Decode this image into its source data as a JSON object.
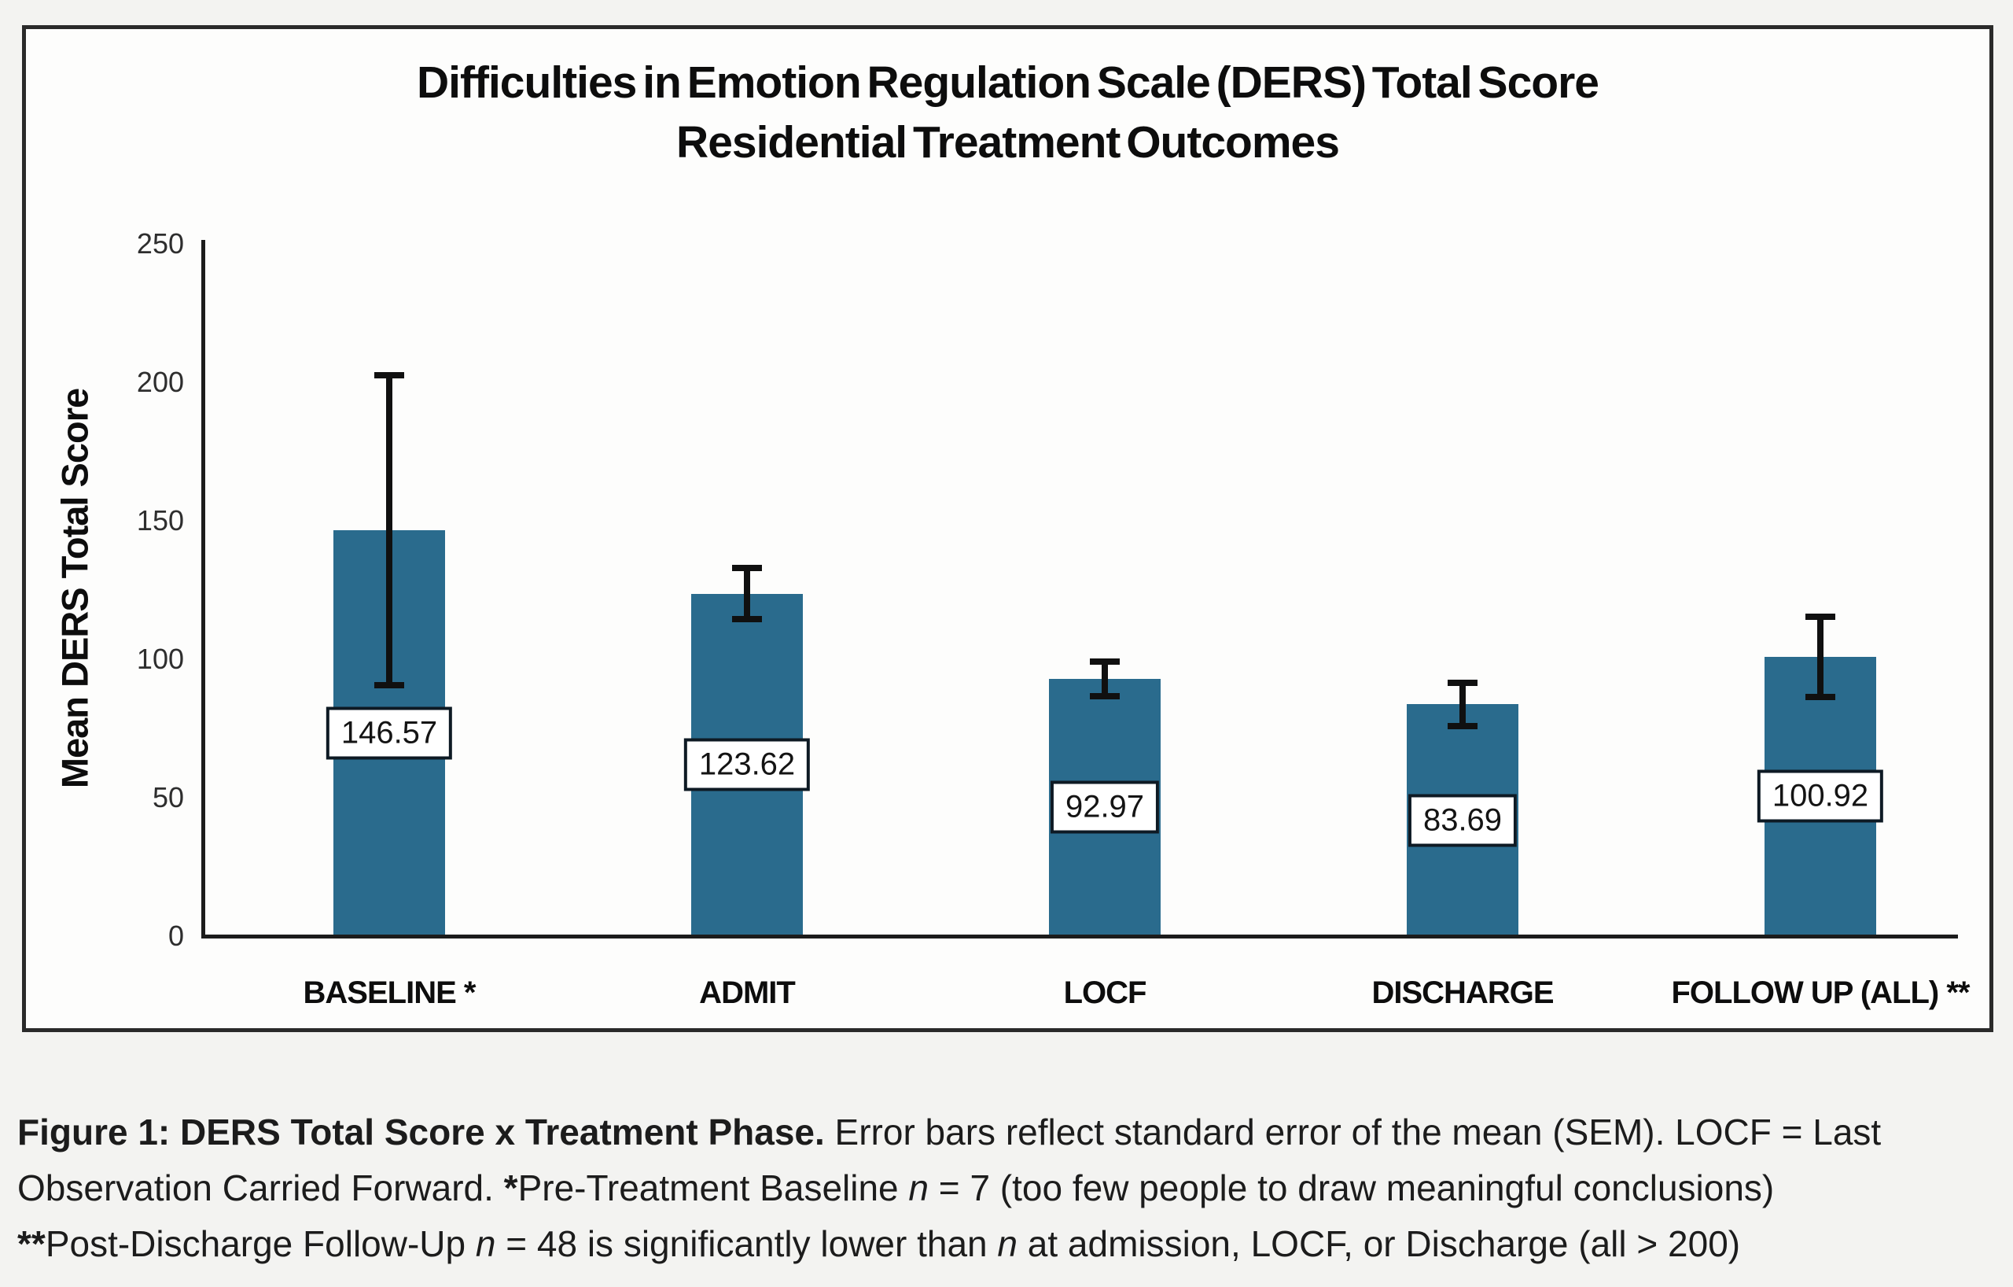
{
  "figure": {
    "title_line1": "Difficulties in Emotion Regulation Scale (DERS) Total Score",
    "title_line2": "Residential Treatment Outcomes",
    "y_axis_title": "Mean DERS Total Score"
  },
  "chart_data": {
    "type": "bar",
    "title": "Difficulties in Emotion Regulation Scale (DERS) Total Score",
    "subtitle": "Residential Treatment Outcomes",
    "xlabel": "",
    "ylabel": "Mean DERS Total Score",
    "categories": [
      "BASELINE *",
      "ADMIT",
      "LOCF",
      "DISCHARGE",
      "FOLLOW UP (ALL) **"
    ],
    "values": [
      146.57,
      123.62,
      92.97,
      83.69,
      100.92
    ],
    "value_labels": [
      "146.57",
      "123.62",
      "92.97",
      "83.69",
      "100.92"
    ],
    "errors_sem": [
      55.9,
      9.2,
      6.3,
      7.7,
      14.5
    ],
    "error_bars": "standard error of the mean (SEM)",
    "ylim": [
      0,
      250
    ],
    "yticks": [
      0,
      50,
      100,
      150,
      200,
      250
    ],
    "grid": false,
    "legend_position": "none",
    "bar_color": "#2a6b8d",
    "axis_color": "#1c1c1c",
    "value_label_box": {
      "background": "#ffffff",
      "border_color": "#0e1a24"
    }
  },
  "caption": {
    "lines": [
      [
        {
          "text": "Figure 1: DERS Total Score x Treatment Phase.",
          "bold": true
        },
        {
          "text": " Error bars reflect standard error of the mean (SEM). LOCF = Last"
        }
      ],
      [
        {
          "text": "Observation Carried Forward. "
        },
        {
          "text": "*",
          "bold": true
        },
        {
          "text": "Pre-Treatment Baseline "
        },
        {
          "text": "n",
          "italic": true
        },
        {
          "text": " = 7 (too few people to draw meaningful conclusions)"
        }
      ],
      [
        {
          "text": "**",
          "bold": true
        },
        {
          "text": "Post-Discharge Follow-Up "
        },
        {
          "text": "n",
          "italic": true
        },
        {
          "text": " = 48 is significantly lower than "
        },
        {
          "text": "n",
          "italic": true
        },
        {
          "text": " at admission, LOCF, or Discharge (all > 200)"
        }
      ]
    ]
  }
}
